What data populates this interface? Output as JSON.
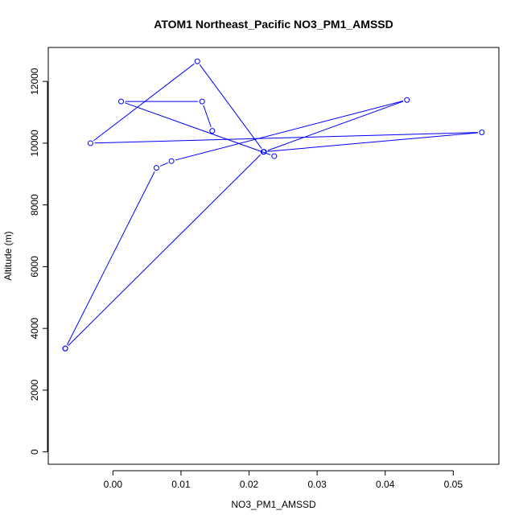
{
  "chart_data": {
    "type": "line",
    "title": "ATOM1 Northeast_Pacific NO3_PM1_AMSSD",
    "xlabel": "NO3_PM1_AMSSD",
    "ylabel": "Altitude (m)",
    "xlim": [
      -0.0095,
      0.0567
    ],
    "ylim": [
      -400,
      13100
    ],
    "x_ticks": [
      0.0,
      0.01,
      0.02,
      0.03,
      0.04,
      0.05
    ],
    "x_tick_labels": [
      "0.00",
      "0.01",
      "0.02",
      "0.03",
      "0.04",
      "0.05"
    ],
    "y_ticks": [
      0,
      2000,
      4000,
      6000,
      8000,
      10000,
      12000
    ],
    "y_tick_labels": [
      "0",
      "2000",
      "4000",
      "6000",
      "8000",
      "10000",
      "12000"
    ],
    "grid": false,
    "legend": "none",
    "series": [
      {
        "color": "#0000ff",
        "marker": "open-circle",
        "points": [
          {
            "x": -0.007,
            "y": 3350
          },
          {
            "x": 0.0221,
            "y": 9720
          },
          {
            "x": 0.0542,
            "y": 10350
          },
          {
            "x": -0.0033,
            "y": 10000
          },
          {
            "x": 0.0124,
            "y": 12650
          },
          {
            "x": 0.0222,
            "y": 9720
          },
          {
            "x": 0.0432,
            "y": 11400
          },
          {
            "x": 0.0086,
            "y": 9420
          },
          {
            "x": 0.0064,
            "y": 9200
          },
          {
            "x": -0.007,
            "y": 3350
          }
        ],
        "extra_points": [
          {
            "x": 0.0012,
            "y": 11350
          },
          {
            "x": 0.0131,
            "y": 11350
          },
          {
            "x": 0.0146,
            "y": 10400
          },
          {
            "x": 0.0237,
            "y": 9580
          }
        ],
        "extra_path": [
          {
            "x": 0.0131,
            "y": 11350
          },
          {
            "x": 0.0012,
            "y": 11350
          },
          {
            "x": 0.0237,
            "y": 9580
          }
        ],
        "extra_path2": [
          {
            "x": 0.0131,
            "y": 11350
          },
          {
            "x": 0.0146,
            "y": 10400
          }
        ]
      }
    ]
  }
}
